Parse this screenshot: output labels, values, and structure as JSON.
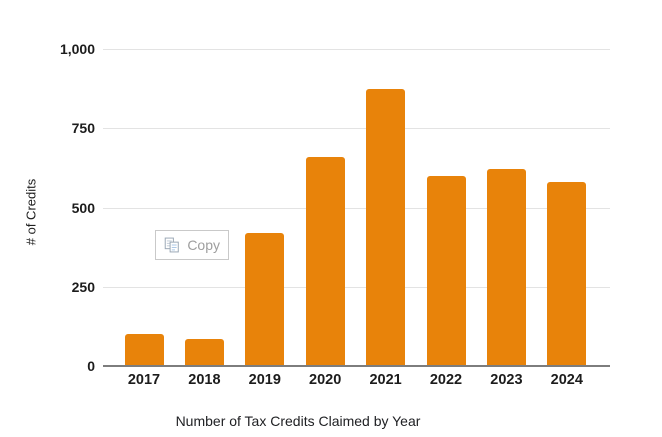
{
  "chart_data": {
    "type": "bar",
    "categories": [
      "2017",
      "2018",
      "2019",
      "2020",
      "2021",
      "2022",
      "2023",
      "2024"
    ],
    "values": [
      100,
      85,
      420,
      660,
      875,
      600,
      620,
      580
    ],
    "title": "Number of Tax Credits Claimed by Year",
    "xlabel": "Number of Tax Credits Claimed by Year",
    "ylabel": "# of Credits",
    "ylim": [
      0,
      1000
    ],
    "yticks": [
      0,
      250,
      500,
      750,
      1000
    ],
    "ytick_labels": [
      "0",
      "250",
      "500",
      "750",
      "1,000"
    ],
    "grid": true,
    "legend": "none",
    "bar_color": "#E8830A"
  },
  "copy_button": {
    "label": "Copy"
  },
  "colors": {
    "bar": "#E8830A",
    "gridline": "#e3e3e3",
    "axis_line": "#7d7d7d",
    "text": "#1c1c1c",
    "muted_text": "#9e9e9e",
    "button_border": "#c9c9c9",
    "icon_outline": "#9aa7b5",
    "icon_lines_blue": "#a9c7e7",
    "icon_lines_gray": "#c3cdd8"
  }
}
